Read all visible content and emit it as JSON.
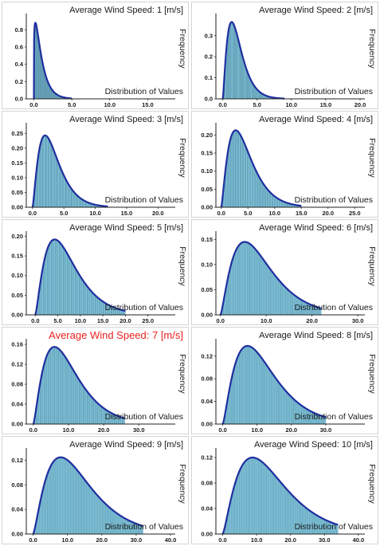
{
  "chart_data": [
    {
      "type": "bar",
      "title": "Average Wind Speed: 1 [m/s]",
      "ylabel": "Frequency",
      "xlabel": "Distribution of Values",
      "xlim": [
        -1,
        18
      ],
      "ylim": [
        0,
        0.95
      ],
      "xticks": [
        0,
        5,
        10,
        15
      ],
      "xtick_labels": [
        "0.0",
        "5.0",
        "10.0",
        "15.0"
      ],
      "yticks": [
        0,
        0.2,
        0.4,
        0.6,
        0.8
      ],
      "ytick_labels": [
        "0.0",
        "0.2",
        "0.4",
        "0.6",
        "0.8"
      ],
      "peak_x": 0.2,
      "peak_y": 0.88,
      "x_max": 5,
      "series": [
        {
          "color": "#1f2f9f",
          "fill": "#7fc3d9"
        }
      ]
    },
    {
      "type": "bar",
      "title": "Average Wind Speed: 2 [m/s]",
      "ylabel": "Frequency",
      "xlabel": "Distribution of Values",
      "xlim": [
        -1,
        20
      ],
      "ylim": [
        0,
        0.39
      ],
      "xticks": [
        0,
        5,
        10,
        15,
        20
      ],
      "xtick_labels": [
        "0.0",
        "5.0",
        "10.0",
        "15.0",
        "20.0"
      ],
      "yticks": [
        0,
        0.1,
        0.2,
        0.3
      ],
      "ytick_labels": [
        "0.0",
        "0.1",
        "0.2",
        "0.3"
      ],
      "peak_x": 1.3,
      "peak_y": 0.365,
      "x_max": 9,
      "series": [
        {
          "color": "#1f2f9f",
          "fill": "#7fc3d9"
        }
      ]
    },
    {
      "type": "bar",
      "title": "Average Wind Speed: 3 [m/s]",
      "ylabel": "Frequency",
      "xlabel": "Distribution of Values",
      "xlim": [
        -1,
        22
      ],
      "ylim": [
        0,
        0.275
      ],
      "xticks": [
        0,
        5,
        10,
        15,
        20
      ],
      "xtick_labels": [
        "0.0",
        "5.0",
        "10.0",
        "15.0",
        "20.0"
      ],
      "yticks": [
        0,
        0.05,
        0.1,
        0.15,
        0.2,
        0.25
      ],
      "ytick_labels": [
        "0.00",
        "0.05",
        "0.10",
        "0.15",
        "0.20",
        "0.25"
      ],
      "peak_x": 2.0,
      "peak_y": 0.243,
      "x_max": 12,
      "series": [
        {
          "color": "#1f2f9f",
          "fill": "#7fc3d9"
        }
      ]
    },
    {
      "type": "bar",
      "title": "Average Wind Speed: 4 [m/s]",
      "ylabel": "Frequency",
      "xlabel": "Distribution of Values",
      "xlim": [
        -1,
        26
      ],
      "ylim": [
        0,
        0.225
      ],
      "xticks": [
        0,
        5,
        10,
        15,
        20,
        25
      ],
      "xtick_labels": [
        "0.0",
        "5.0",
        "10.0",
        "15.0",
        "20.0",
        "25.0"
      ],
      "yticks": [
        0,
        0.05,
        0.1,
        0.15,
        0.2
      ],
      "ytick_labels": [
        "0.00",
        "0.05",
        "0.10",
        "0.15",
        "0.20"
      ],
      "peak_x": 2.7,
      "peak_y": 0.213,
      "x_max": 15,
      "series": [
        {
          "color": "#1f2f9f",
          "fill": "#7fc3d9"
        }
      ]
    },
    {
      "type": "bar",
      "title": "Average Wind Speed: 5 [m/s]",
      "ylabel": "Frequency",
      "xlabel": "Distribution of Values",
      "xlim": [
        -2,
        30
      ],
      "ylim": [
        0,
        0.205
      ],
      "xticks": [
        0,
        5,
        10,
        15,
        20,
        25
      ],
      "xtick_labels": [
        "0.0",
        "5.0",
        "10.0",
        "15.0",
        "20.0",
        "25.0"
      ],
      "yticks": [
        0,
        0.05,
        0.1,
        0.15,
        0.2
      ],
      "ytick_labels": [
        "0.00",
        "0.05",
        "0.10",
        "0.15",
        "0.20"
      ],
      "peak_x": 4.3,
      "peak_y": 0.192,
      "x_max": 20,
      "series": [
        {
          "color": "#1f2f9f",
          "fill": "#7fc3d9"
        }
      ]
    },
    {
      "type": "bar",
      "title": "Average Wind Speed: 6 [m/s]",
      "ylabel": "Frequency",
      "xlabel": "Distribution of Values",
      "xlim": [
        -1,
        30.5
      ],
      "ylim": [
        0,
        0.16
      ],
      "xticks": [
        0,
        10,
        20,
        30
      ],
      "xtick_labels": [
        "0.0",
        "10.0",
        "20.0",
        "30.0"
      ],
      "yticks": [
        0,
        0.05,
        0.1,
        0.15
      ],
      "ytick_labels": [
        "0.00",
        "0.05",
        "0.10",
        "0.15"
      ],
      "peak_x": 5.3,
      "peak_y": 0.145,
      "x_max": 22,
      "series": [
        {
          "color": "#1f2f9f",
          "fill": "#7fc3d9"
        }
      ]
    },
    {
      "type": "bar",
      "title": "Average Wind Speed: 7 [m/s]",
      "title_color": "#e8231f",
      "ylabel": "Frequency",
      "xlabel": "Distribution of Values",
      "xlim": [
        -2,
        39
      ],
      "ylim": [
        0,
        0.165
      ],
      "xticks": [
        0,
        10,
        20,
        30
      ],
      "xtick_labels": [
        "0.0",
        "10.0",
        "20.0",
        "30.0"
      ],
      "yticks": [
        0,
        0.04,
        0.08,
        0.12,
        0.16
      ],
      "ytick_labels": [
        "0.00",
        "0.04",
        "0.08",
        "0.12",
        "0.16"
      ],
      "peak_x": 6.0,
      "peak_y": 0.155,
      "x_max": 26,
      "series": [
        {
          "color": "#1f2f9f",
          "fill": "#7fc3d9"
        }
      ]
    },
    {
      "type": "bar",
      "title": "Average Wind Speed: 8 [m/s]",
      "ylabel": "Frequency",
      "xlabel": "Distribution of Values",
      "xlim": [
        -2,
        40
      ],
      "ylim": [
        0,
        0.145
      ],
      "xticks": [
        0,
        10,
        20,
        30
      ],
      "xtick_labels": [
        "0.0",
        "10.0",
        "20.0",
        "30.0"
      ],
      "yticks": [
        0,
        0.04,
        0.08,
        0.12
      ],
      "ytick_labels": [
        "0.00",
        "0.04",
        "0.08",
        "0.12"
      ],
      "peak_x": 7.2,
      "peak_y": 0.138,
      "x_max": 30,
      "series": [
        {
          "color": "#1f2f9f",
          "fill": "#7fc3d9"
        }
      ]
    },
    {
      "type": "bar",
      "title": "Average Wind Speed: 9 [m/s]",
      "ylabel": "Frequency",
      "xlabel": "Distribution of Values",
      "xlim": [
        -2,
        40
      ],
      "ylim": [
        0,
        0.135
      ],
      "xticks": [
        0,
        10,
        20,
        30,
        40
      ],
      "xtick_labels": [
        "0.0",
        "10.0",
        "20.0",
        "30.0",
        "40.0"
      ],
      "yticks": [
        0,
        0.04,
        0.08,
        0.12
      ],
      "ytick_labels": [
        "0.00",
        "0.04",
        "0.08",
        "0.12"
      ],
      "peak_x": 8.0,
      "peak_y": 0.125,
      "x_max": 32,
      "series": [
        {
          "color": "#1f2f9f",
          "fill": "#7fc3d9"
        }
      ]
    },
    {
      "type": "bar",
      "title": "Average Wind Speed: 10 [m/s]",
      "ylabel": "Frequency",
      "xlabel": "Distribution of Values",
      "xlim": [
        -2,
        40.5
      ],
      "ylim": [
        0,
        0.13
      ],
      "xticks": [
        0,
        10,
        20,
        30,
        40
      ],
      "xtick_labels": [
        "0.0",
        "10.0",
        "20.0",
        "30.0",
        "40.0"
      ],
      "yticks": [
        0,
        0.04,
        0.08,
        0.12
      ],
      "ytick_labels": [
        "0.00",
        "0.04",
        "0.08",
        "0.12"
      ],
      "peak_x": 8.8,
      "peak_y": 0.12,
      "x_max": 34,
      "series": [
        {
          "color": "#1f2f9f",
          "fill": "#7fc3d9"
        }
      ]
    }
  ]
}
